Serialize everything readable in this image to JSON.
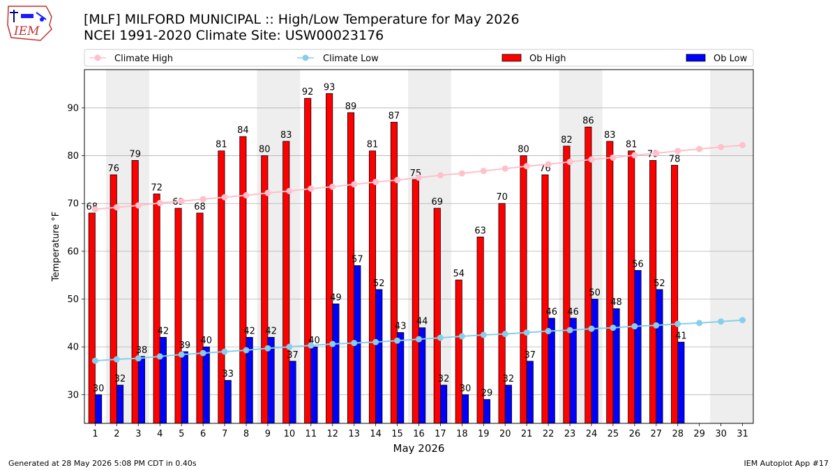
{
  "header": {
    "title_line1": "[MLF] MILFORD MUNICIPAL :: High/Low Temperature for May 2026",
    "title_line2": "NCEI 1991-2020 Climate Site: USW00023176",
    "logo_text": "IEM"
  },
  "footer": {
    "left": "Generated at 28 May 2026 5:08 PM CDT in 0.40s",
    "right": "IEM Autoplot App #17"
  },
  "colors": {
    "ob_high": "#ff0000",
    "ob_low": "#0000ff",
    "climate_high": "#ffc0cb",
    "climate_low": "#87ceeb",
    "weekend_shade": "#eeeeee",
    "grid": "#b0b0b0"
  },
  "chart_data": {
    "type": "bar",
    "xlabel": "May 2026",
    "ylabel": "Temperature °F",
    "ylim": [
      24,
      98
    ],
    "yticks": [
      30,
      40,
      50,
      60,
      70,
      80,
      90
    ],
    "grid": "horizontal",
    "legend_position": "top",
    "categories": [
      1,
      2,
      3,
      4,
      5,
      6,
      7,
      8,
      9,
      10,
      11,
      12,
      13,
      14,
      15,
      16,
      17,
      18,
      19,
      20,
      21,
      22,
      23,
      24,
      25,
      26,
      27,
      28,
      29,
      30,
      31
    ],
    "shaded_days": [
      [
        2,
        3
      ],
      [
        9,
        10
      ],
      [
        16,
        17
      ],
      [
        23,
        24
      ],
      [
        30,
        31
      ]
    ],
    "series": [
      {
        "name": "Climate High",
        "kind": "line",
        "values": [
          68.8,
          69.2,
          69.6,
          70.1,
          70.5,
          70.9,
          71.3,
          71.7,
          72.2,
          72.6,
          73.1,
          73.5,
          74.0,
          74.5,
          74.9,
          75.4,
          75.9,
          76.3,
          76.8,
          77.3,
          77.8,
          78.2,
          78.7,
          79.2,
          79.6,
          80.1,
          80.5,
          81.0,
          81.4,
          81.8,
          82.2
        ]
      },
      {
        "name": "Climate Low",
        "kind": "line",
        "values": [
          37.1,
          37.4,
          37.6,
          38.0,
          38.4,
          38.7,
          39.0,
          39.3,
          39.7,
          40.0,
          40.3,
          40.6,
          40.8,
          41.0,
          41.3,
          41.6,
          41.9,
          42.2,
          42.5,
          42.7,
          43.0,
          43.3,
          43.5,
          43.8,
          44.0,
          44.3,
          44.5,
          44.8,
          45.0,
          45.3,
          45.6
        ]
      },
      {
        "name": "Ob High",
        "kind": "bar",
        "values": [
          68,
          76,
          79,
          72,
          69,
          68,
          81,
          84,
          80,
          83,
          92,
          93,
          89,
          81,
          87,
          75,
          69,
          54,
          63,
          70,
          80,
          76,
          82,
          86,
          83,
          81,
          79,
          78,
          null,
          null,
          null
        ]
      },
      {
        "name": "Ob Low",
        "kind": "bar",
        "values": [
          30,
          32,
          38,
          42,
          39,
          40,
          33,
          42,
          42,
          37,
          40,
          49,
          57,
          52,
          43,
          44,
          32,
          30,
          29,
          32,
          37,
          46,
          46,
          50,
          48,
          56,
          52,
          41,
          null,
          null,
          null
        ]
      }
    ]
  }
}
